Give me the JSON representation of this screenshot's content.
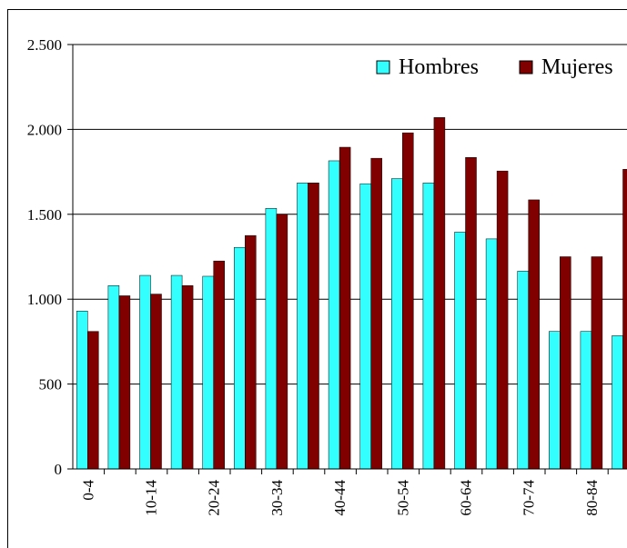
{
  "chart_data": {
    "type": "bar",
    "categories": [
      "0-4",
      null,
      "10-14",
      null,
      "20-24",
      null,
      "30-34",
      null,
      "40-44",
      null,
      "50-54",
      null,
      "60-64",
      null,
      "70-74",
      null,
      "80-84",
      null
    ],
    "series": [
      {
        "name": "Hombres",
        "color": "#33ffff",
        "values": [
          930,
          1080,
          1140,
          1140,
          1135,
          1305,
          1535,
          1685,
          1815,
          1680,
          1710,
          1685,
          1395,
          1355,
          1165,
          810,
          810,
          785
        ]
      },
      {
        "name": "Mujeres",
        "color": "#800000",
        "values": [
          810,
          1020,
          1030,
          1080,
          1225,
          1375,
          1500,
          1685,
          1895,
          1830,
          1980,
          2070,
          1835,
          1755,
          1585,
          1250,
          1250,
          1765
        ]
      }
    ],
    "ylim": [
      0,
      2500
    ],
    "yticks": [
      0,
      500,
      {
        "value": 1000,
        "label": "1.000"
      },
      {
        "value": 1500,
        "label": "1.500"
      },
      {
        "value": 2000,
        "label": "2.000"
      },
      {
        "value": 2500,
        "label": "2.500"
      }
    ],
    "grid": true,
    "legend": "top-right"
  }
}
